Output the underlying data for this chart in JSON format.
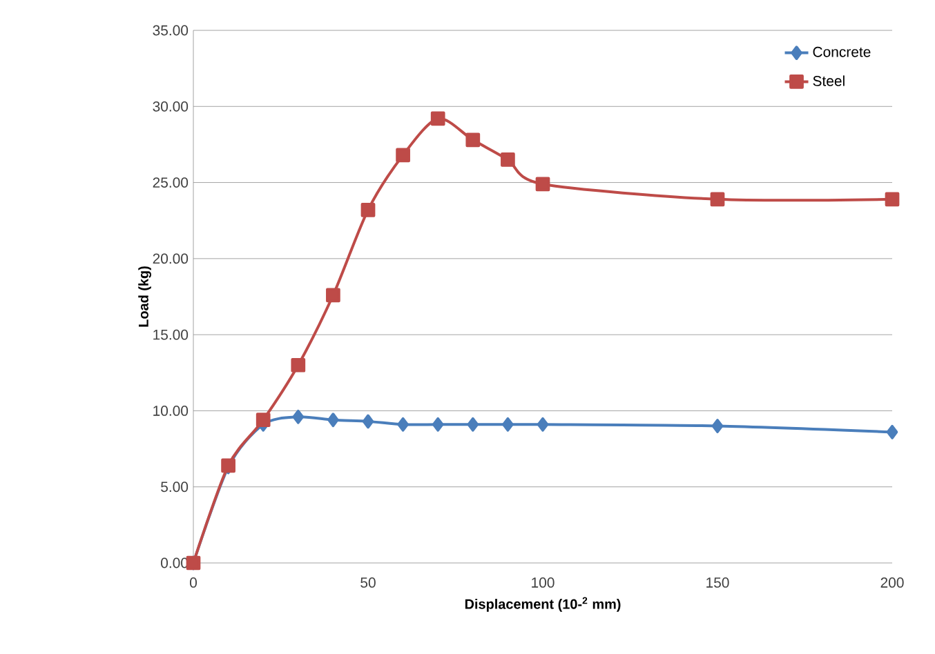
{
  "chart_data": {
    "type": "line",
    "xlabel": "Displacement (10-$^{2}$ mm)",
    "ylabel": "Load (kg)",
    "x": [
      0,
      10,
      20,
      30,
      40,
      50,
      60,
      70,
      80,
      90,
      100,
      150,
      200
    ],
    "series": [
      {
        "name": "Concrete",
        "color": "#4a7ebb",
        "marker": "diamond",
        "values": [
          0,
          6.3,
          9.1,
          9.6,
          9.4,
          9.3,
          9.1,
          9.1,
          9.1,
          9.1,
          9.1,
          9.0,
          8.6
        ]
      },
      {
        "name": "Steel",
        "color": "#be4b48",
        "marker": "square",
        "values": [
          0,
          6.4,
          9.4,
          13.0,
          17.6,
          23.2,
          26.8,
          29.2,
          27.8,
          26.5,
          24.9,
          23.9,
          23.9
        ]
      }
    ],
    "xlim": [
      0,
      200
    ],
    "xticks": [
      0,
      50,
      100,
      150,
      200
    ],
    "ylim": [
      0,
      35
    ],
    "yticks": [
      {
        "value": 0,
        "label": "0.00"
      },
      {
        "value": 5,
        "label": "5.00"
      },
      {
        "value": 10,
        "label": "10.00"
      },
      {
        "value": 15,
        "label": "15.00"
      },
      {
        "value": 20,
        "label": "20.00"
      },
      {
        "value": 25,
        "label": "25.00"
      },
      {
        "value": 30,
        "label": "30.00"
      },
      {
        "value": 35,
        "label": "35.00"
      }
    ],
    "grid": "y",
    "legend": "top right",
    "line_style": "solid"
  }
}
